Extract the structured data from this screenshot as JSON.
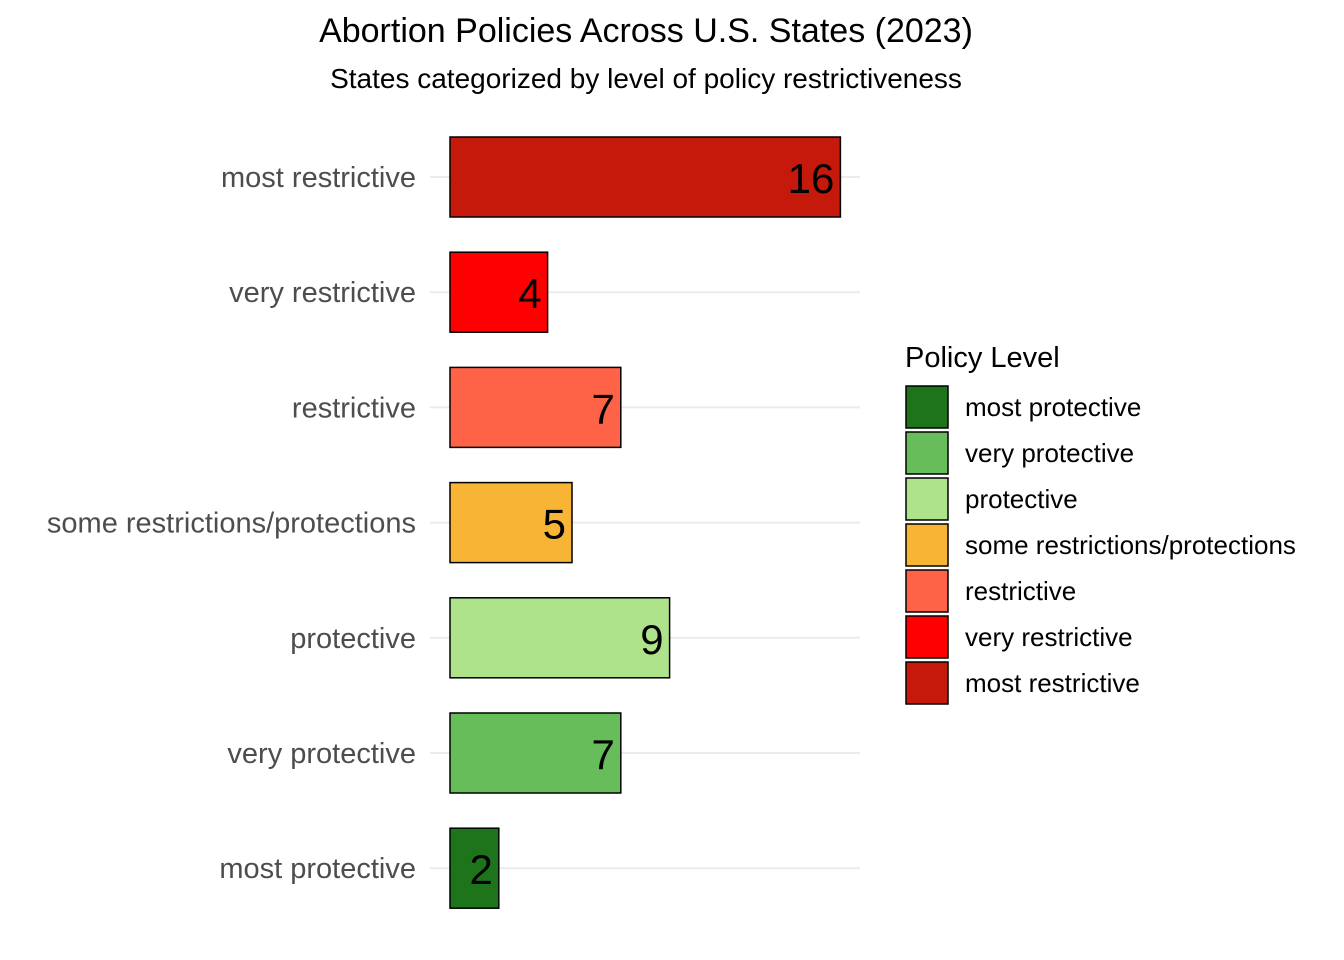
{
  "chart_data": {
    "type": "bar",
    "orientation": "horizontal",
    "title": "Abortion Policies Across U.S. States (2023)",
    "subtitle": "States categorized by level of policy restrictiveness",
    "xlabel": "",
    "ylabel": "",
    "categories": [
      "most restrictive",
      "very restrictive",
      "restrictive",
      "some restrictions/protections",
      "protective",
      "very protective",
      "most protective"
    ],
    "values": [
      16,
      4,
      7,
      5,
      9,
      7,
      2
    ],
    "value_labels": [
      "16",
      "4",
      "7",
      "5",
      "9",
      "7",
      "2"
    ],
    "colors": [
      "#c4190b",
      "#ff0000",
      "#ff6347",
      "#f8b535",
      "#aee28b",
      "#66bd59",
      "#1d741b"
    ],
    "xlim": [
      0,
      16.8
    ],
    "grid": "horizontal major lines at categories",
    "x_axis_visible": false,
    "legend": {
      "title": "Policy Level",
      "placement": "right",
      "items": [
        {
          "label": "most protective",
          "color": "#1d741b"
        },
        {
          "label": "very protective",
          "color": "#66bd59"
        },
        {
          "label": "protective",
          "color": "#aee28b"
        },
        {
          "label": "some restrictions/protections",
          "color": "#f8b535"
        },
        {
          "label": "restrictive",
          "color": "#ff6347"
        },
        {
          "label": "very restrictive",
          "color": "#ff0000"
        },
        {
          "label": "most restrictive",
          "color": "#c4190b"
        }
      ]
    }
  }
}
